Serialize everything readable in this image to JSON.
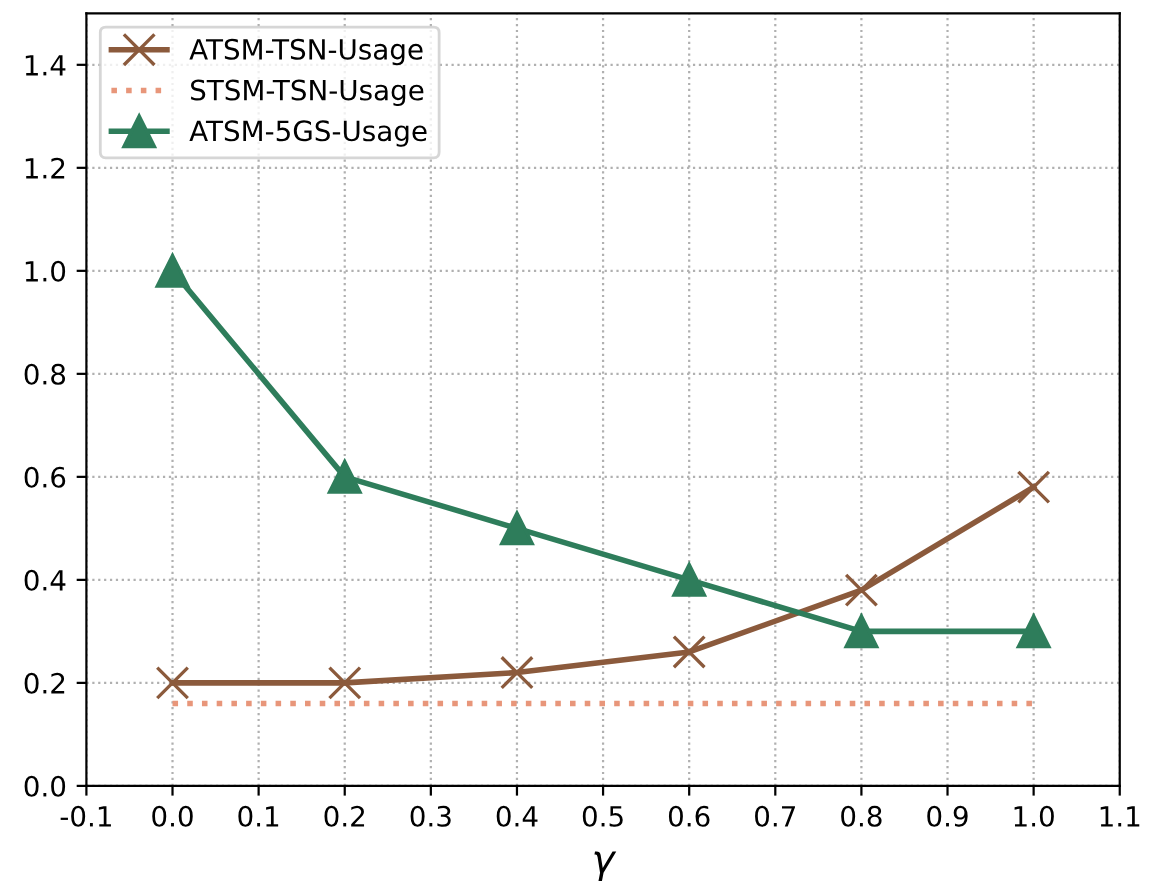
{
  "chart_data": {
    "type": "line",
    "xlabel": "γ",
    "x": [
      0.0,
      0.2,
      0.4,
      0.6,
      0.8,
      1.0
    ],
    "series": [
      {
        "name": "ATSM-TSN-Usage",
        "color": "#8b5a3c",
        "values": [
          0.2,
          0.2,
          0.22,
          0.26,
          0.38,
          0.58
        ],
        "marker": "cross",
        "line_style": "solid"
      },
      {
        "name": "STSM-TSN-Usage",
        "color": "#e8967a",
        "values": [
          0.16,
          0.16,
          0.16,
          0.16,
          0.16,
          0.16
        ],
        "marker": "none",
        "line_style": "dotted"
      },
      {
        "name": "ATSM-5GS-Usage",
        "color": "#2e7d5b",
        "values": [
          1.0,
          0.6,
          0.5,
          0.4,
          0.3,
          0.3
        ],
        "marker": "triangle",
        "line_style": "solid"
      }
    ],
    "xlim": [
      -0.1,
      1.1
    ],
    "xticks": [
      -0.1,
      {
        "value": 0,
        "label": "0.0"
      },
      0.1,
      0.2,
      0.3,
      0.4,
      0.5,
      0.6,
      0.7,
      0.8,
      0.9,
      {
        "value": 1,
        "label": "1.0"
      },
      1.1
    ],
    "ylim": [
      0,
      1.5
    ],
    "yticks": [
      {
        "value": 0,
        "label": "0.0"
      },
      0.2,
      0.4,
      0.6,
      0.8,
      {
        "value": 1,
        "label": "1.0"
      },
      1.2,
      1.4
    ],
    "grid": true,
    "legend": "top left"
  }
}
